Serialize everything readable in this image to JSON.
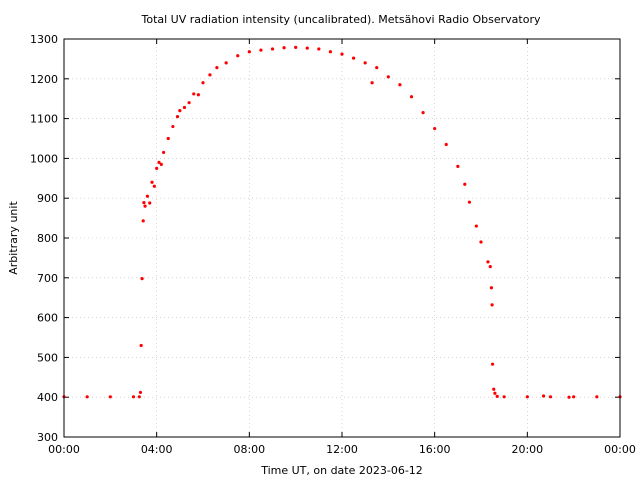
{
  "chart_data": {
    "type": "scatter",
    "title": "Total UV radiation intensity (uncalibrated). Metsähovi Radio Observatory",
    "xlabel": "Time UT, on date 2023-06-12",
    "ylabel": "Arbitrary unit",
    "xlim": [
      0,
      24
    ],
    "ylim": [
      300,
      1300
    ],
    "x_ticks": [
      {
        "value": 0,
        "label": "00:00"
      },
      {
        "value": 4,
        "label": "04:00"
      },
      {
        "value": 8,
        "label": "08:00"
      },
      {
        "value": 12,
        "label": "12:00"
      },
      {
        "value": 16,
        "label": "16:00"
      },
      {
        "value": 20,
        "label": "20:00"
      },
      {
        "value": 24,
        "label": "00:00"
      }
    ],
    "y_ticks": [
      300,
      400,
      500,
      600,
      700,
      800,
      900,
      1000,
      1100,
      1200,
      1300
    ],
    "grid": true,
    "marker_color": "#ff0000",
    "series": [
      {
        "points": [
          [
            0.0,
            401
          ],
          [
            1.0,
            401
          ],
          [
            2.0,
            401
          ],
          [
            3.0,
            401
          ],
          [
            3.25,
            401
          ],
          [
            3.3,
            412
          ],
          [
            3.33,
            530
          ],
          [
            3.37,
            698
          ],
          [
            3.42,
            843
          ],
          [
            3.45,
            889
          ],
          [
            3.5,
            880
          ],
          [
            3.6,
            905
          ],
          [
            3.7,
            888
          ],
          [
            3.8,
            940
          ],
          [
            3.9,
            930
          ],
          [
            4.0,
            975
          ],
          [
            4.1,
            990
          ],
          [
            4.2,
            985
          ],
          [
            4.3,
            1015
          ],
          [
            4.5,
            1050
          ],
          [
            4.7,
            1080
          ],
          [
            4.9,
            1105
          ],
          [
            5.0,
            1120
          ],
          [
            5.2,
            1128
          ],
          [
            5.4,
            1140
          ],
          [
            5.6,
            1162
          ],
          [
            5.8,
            1160
          ],
          [
            6.0,
            1190
          ],
          [
            6.3,
            1210
          ],
          [
            6.6,
            1228
          ],
          [
            7.0,
            1240
          ],
          [
            7.5,
            1258
          ],
          [
            8.0,
            1268
          ],
          [
            8.5,
            1272
          ],
          [
            9.0,
            1275
          ],
          [
            9.5,
            1278
          ],
          [
            10.0,
            1279
          ],
          [
            10.5,
            1277
          ],
          [
            11.0,
            1275
          ],
          [
            11.5,
            1268
          ],
          [
            12.0,
            1262
          ],
          [
            12.5,
            1252
          ],
          [
            13.0,
            1240
          ],
          [
            13.3,
            1190
          ],
          [
            13.5,
            1228
          ],
          [
            14.0,
            1205
          ],
          [
            14.5,
            1185
          ],
          [
            15.0,
            1155
          ],
          [
            15.5,
            1115
          ],
          [
            16.0,
            1075
          ],
          [
            16.5,
            1035
          ],
          [
            17.0,
            980
          ],
          [
            17.3,
            935
          ],
          [
            17.5,
            890
          ],
          [
            17.8,
            830
          ],
          [
            18.0,
            790
          ],
          [
            18.3,
            740
          ],
          [
            18.4,
            728
          ],
          [
            18.45,
            675
          ],
          [
            18.48,
            632
          ],
          [
            18.5,
            483
          ],
          [
            18.55,
            420
          ],
          [
            18.6,
            410
          ],
          [
            18.7,
            402
          ],
          [
            19.0,
            401
          ],
          [
            20.0,
            401
          ],
          [
            20.7,
            403
          ],
          [
            21.0,
            401
          ],
          [
            21.8,
            400
          ],
          [
            22.0,
            401
          ],
          [
            23.0,
            401
          ],
          [
            24.0,
            401
          ]
        ]
      }
    ]
  }
}
